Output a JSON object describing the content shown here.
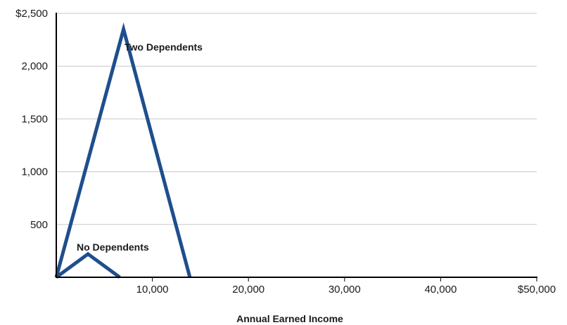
{
  "chart_data": {
    "type": "line",
    "xlabel": "Annual Earned Income",
    "ylabel": "",
    "xlim": [
      0,
      50000
    ],
    "ylim": [
      0,
      2500
    ],
    "x_ticks": [
      {
        "value": 10000,
        "label": "10,000"
      },
      {
        "value": 20000,
        "label": "20,000"
      },
      {
        "value": 30000,
        "label": "30,000"
      },
      {
        "value": 40000,
        "label": "40,000"
      },
      {
        "value": 50000,
        "label": "$50,000"
      }
    ],
    "y_ticks": [
      {
        "value": 500,
        "label": "500"
      },
      {
        "value": 1000,
        "label": "1,000"
      },
      {
        "value": 1500,
        "label": "1,500"
      },
      {
        "value": 2000,
        "label": "2,000"
      },
      {
        "value": 2500,
        "label": "$2,500"
      }
    ],
    "grid": "horizontal",
    "line_color": "#1f4e8c",
    "series": [
      {
        "points": [
          [
            0,
            0
          ],
          [
            3300,
            220
          ],
          [
            6600,
            0
          ]
        ],
        "annotation": "No Dependents"
      },
      {
        "points": [
          [
            0,
            0
          ],
          [
            7000,
            2350
          ],
          [
            13900,
            0
          ]
        ],
        "annotation": "Two Dependents"
      }
    ]
  }
}
